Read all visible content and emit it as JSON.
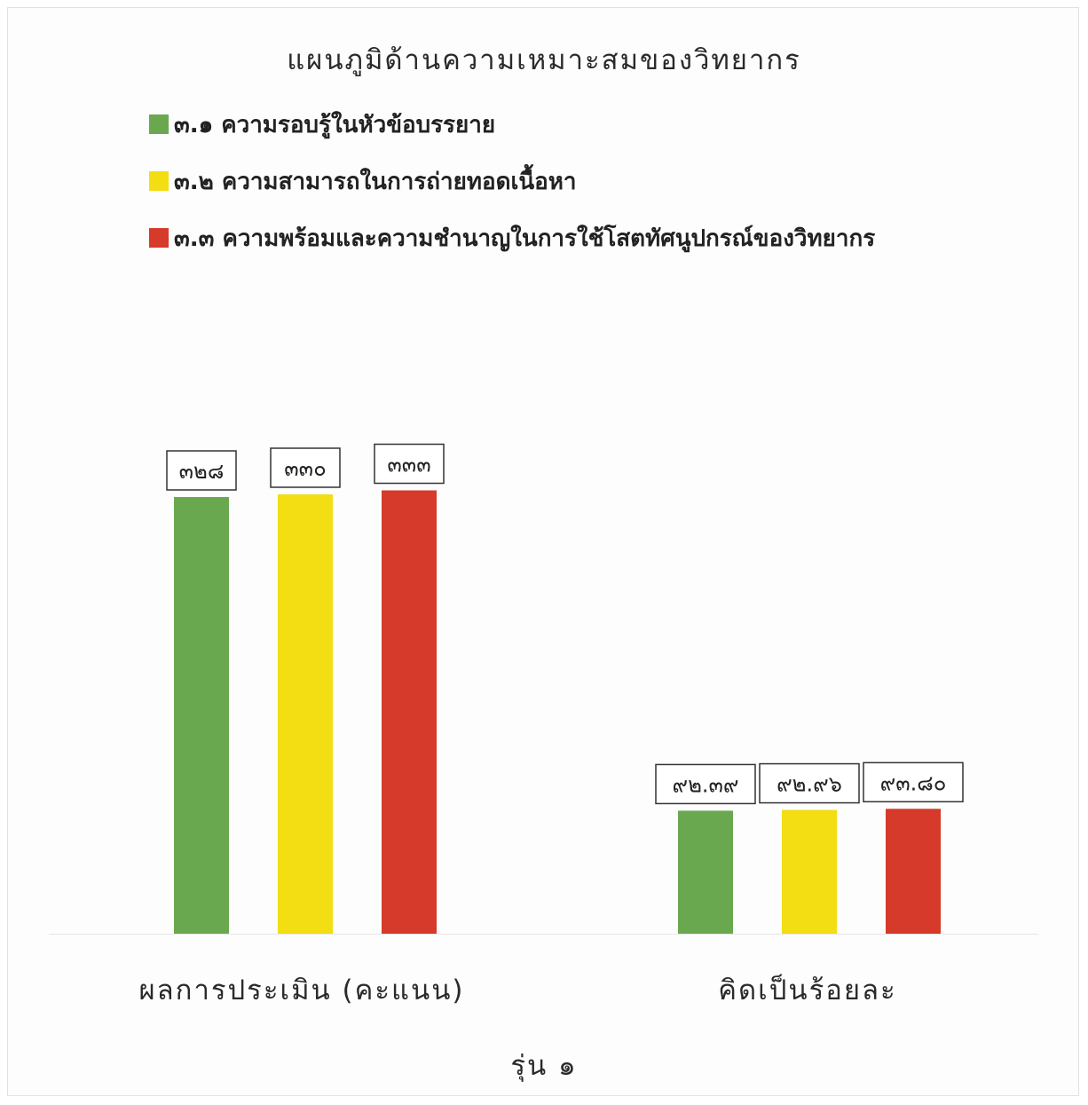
{
  "chart_data": {
    "type": "bar",
    "title": "แผนภูมิด้านความเหมาะสมของวิทยากร",
    "categories": [
      "ผลการประเมิน (คะแนน)",
      "คิดเป็นร้อยละ"
    ],
    "series": [
      {
        "name": "๓.๑ ความรอบรู้ในหัวข้อบรรยาย",
        "color": "#6aa84f",
        "values": [
          328,
          92.39
        ],
        "labels": [
          "๓๒๘",
          "๙๒.๓๙"
        ]
      },
      {
        "name": "๓.๒ ความสามารถในการถ่ายทอดเนื้อหา",
        "color": "#f2de12",
        "values": [
          330,
          92.96
        ],
        "labels": [
          "๓๓๐",
          "๙๒.๙๖"
        ]
      },
      {
        "name": "๓.๓ ความพร้อมและความชำนาญในการใช้โสตทัศนูปกรณ์ของวิทยากร",
        "color": "#d63a2a",
        "values": [
          333,
          93.8
        ],
        "labels": [
          "๓๓๓",
          "๙๓.๘๐"
        ]
      }
    ],
    "ylim": [
      0,
      370
    ],
    "grid": false,
    "legend_position": "top-left",
    "footer": "รุ่น ๑"
  }
}
